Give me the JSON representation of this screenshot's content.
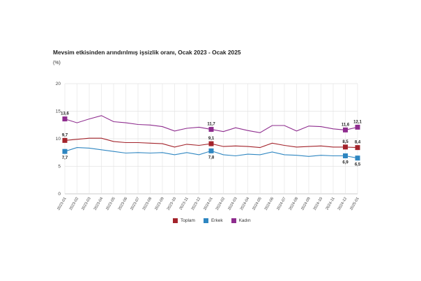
{
  "colors": {
    "Toplam": "#a3232b",
    "Erkek": "#2e86c1",
    "Kadın": "#8e2c8e",
    "grid": "#e3e3e3",
    "axis": "#bdbdbd"
  },
  "chart_data": {
    "type": "line",
    "title": "Mevsim etkisinden arındırılmış işsizlik oranı, Ocak 2023 - Ocak 2025",
    "ylabel": "(%)",
    "ylim": [
      0,
      20
    ],
    "yticks": [
      0,
      5,
      10,
      15,
      20
    ],
    "grid": true,
    "legend": "bottom",
    "categories": [
      "2023-01",
      "2023-02",
      "2023-03",
      "2023-04",
      "2023-05",
      "2023-06",
      "2023-07",
      "2023-08",
      "2023-09",
      "2023-10",
      "2023-11",
      "2023-12",
      "2024-01",
      "2024-02",
      "2024-03",
      "2024-04",
      "2024-05",
      "2024-06",
      "2024-07",
      "2024-08",
      "2024-09",
      "2024-10",
      "2024-11",
      "2024-12",
      "2025-01"
    ],
    "series": [
      {
        "name": "Toplam",
        "values": [
          9.7,
          9.9,
          10.1,
          10.1,
          9.5,
          9.3,
          9.3,
          9.2,
          9.1,
          8.5,
          9.0,
          8.8,
          9.1,
          8.6,
          8.7,
          8.6,
          8.4,
          9.2,
          8.8,
          8.5,
          8.6,
          8.7,
          8.5,
          8.5,
          8.4
        ]
      },
      {
        "name": "Erkek",
        "values": [
          7.7,
          8.4,
          8.3,
          8.0,
          7.7,
          7.4,
          7.5,
          7.4,
          7.5,
          7.1,
          7.5,
          7.1,
          7.8,
          7.1,
          6.9,
          7.2,
          7.1,
          7.6,
          7.1,
          7.0,
          6.8,
          7.0,
          6.9,
          6.9,
          6.5
        ]
      },
      {
        "name": "Kadın",
        "values": [
          13.6,
          12.9,
          13.6,
          14.2,
          13.1,
          12.9,
          12.6,
          12.5,
          12.2,
          11.4,
          11.9,
          12.1,
          11.7,
          11.3,
          12.0,
          11.5,
          11.1,
          12.4,
          12.4,
          11.4,
          12.3,
          12.2,
          11.8,
          11.6,
          12.1
        ]
      }
    ],
    "annotations": [
      {
        "series": "Kadın",
        "index": 0,
        "text": "13,6",
        "pos": "above"
      },
      {
        "series": "Toplam",
        "index": 0,
        "text": "9,7",
        "pos": "above"
      },
      {
        "series": "Erkek",
        "index": 0,
        "text": "7,7",
        "pos": "below"
      },
      {
        "series": "Kadın",
        "index": 12,
        "text": "11,7",
        "pos": "above"
      },
      {
        "series": "Toplam",
        "index": 12,
        "text": "9,1",
        "pos": "above"
      },
      {
        "series": "Erkek",
        "index": 12,
        "text": "7,8",
        "pos": "below"
      },
      {
        "series": "Kadın",
        "index": 23,
        "text": "11,6",
        "pos": "above"
      },
      {
        "series": "Toplam",
        "index": 23,
        "text": "8,5",
        "pos": "above"
      },
      {
        "series": "Erkek",
        "index": 23,
        "text": "6,9",
        "pos": "below"
      },
      {
        "series": "Kadın",
        "index": 24,
        "text": "12,1",
        "pos": "above"
      },
      {
        "series": "Toplam",
        "index": 24,
        "text": "8,4",
        "pos": "above"
      },
      {
        "series": "Erkek",
        "index": 24,
        "text": "6,5",
        "pos": "below"
      }
    ]
  }
}
